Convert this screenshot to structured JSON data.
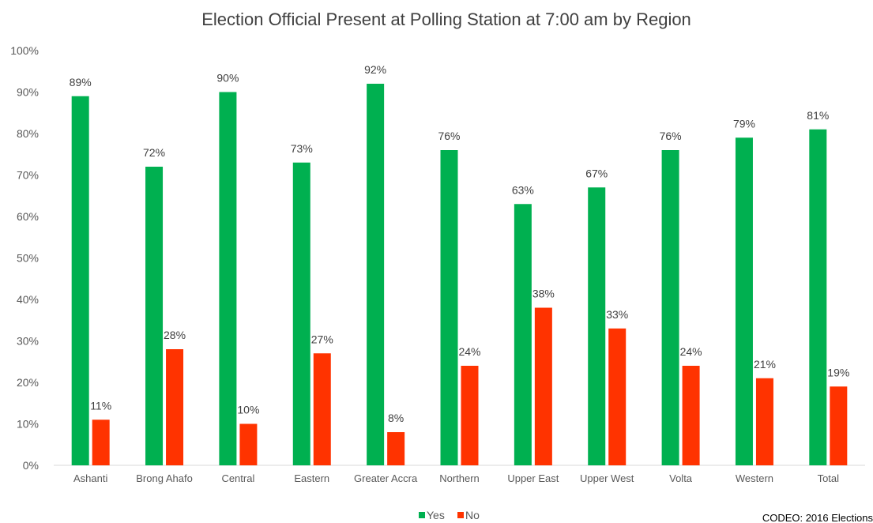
{
  "chart_data": {
    "type": "bar",
    "title": "Election Official Present at Polling Station at 7:00 am by Region",
    "categories": [
      "Ashanti",
      "Brong Ahafo",
      "Central",
      "Eastern",
      "Greater Accra",
      "Northern",
      "Upper East",
      "Upper West",
      "Volta",
      "Western",
      "Total"
    ],
    "series": [
      {
        "name": "Yes",
        "color": "#00B050",
        "values": [
          89,
          72,
          90,
          73,
          92,
          76,
          63,
          67,
          76,
          79,
          81
        ],
        "labels": [
          "89%",
          "72%",
          "90%",
          "73%",
          "92%",
          "76%",
          "63%",
          "67%",
          "76%",
          "79%",
          "81%"
        ]
      },
      {
        "name": "No",
        "color": "#FF3300",
        "values": [
          11,
          28,
          10,
          27,
          8,
          24,
          38,
          33,
          24,
          21,
          19
        ],
        "labels": [
          "11%",
          "28%",
          "10%",
          "27%",
          "8%",
          "24%",
          "38%",
          "33%",
          "24%",
          "21%",
          "19%"
        ]
      }
    ],
    "y_ticks": [
      "0%",
      "10%",
      "20%",
      "30%",
      "40%",
      "50%",
      "60%",
      "70%",
      "80%",
      "90%",
      "100%"
    ],
    "ylim": [
      0,
      100
    ],
    "xlabel": "",
    "ylabel": "",
    "grid": false,
    "legend_position": "bottom"
  },
  "source_note": "CODEO: 2016 Elections"
}
